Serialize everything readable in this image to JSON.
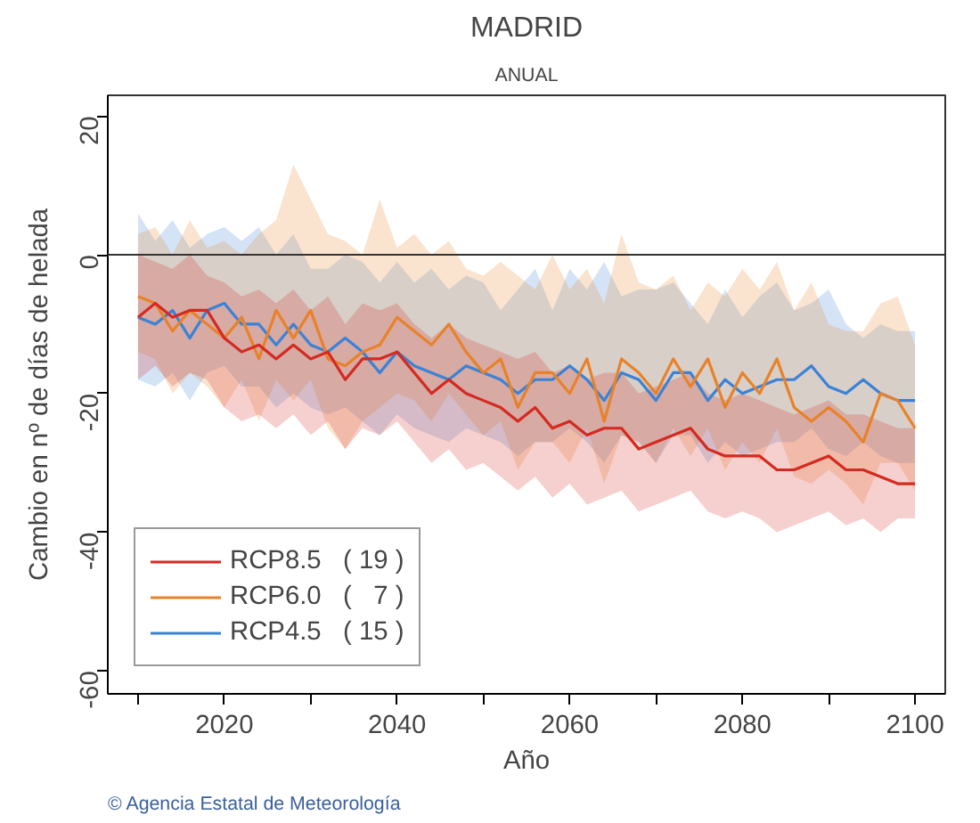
{
  "chart_data": {
    "type": "line",
    "title": "MADRID",
    "subtitle": "ANUAL",
    "xlabel": "Año",
    "ylabel": "Cambio en nº de días de helada",
    "annotations": [
      "© Agencia Estatal de Meteorología"
    ],
    "x": [
      2010,
      2012,
      2014,
      2016,
      2018,
      2020,
      2022,
      2024,
      2026,
      2028,
      2030,
      2032,
      2034,
      2036,
      2038,
      2040,
      2042,
      2044,
      2046,
      2048,
      2050,
      2052,
      2054,
      2056,
      2058,
      2060,
      2062,
      2064,
      2066,
      2068,
      2070,
      2072,
      2074,
      2076,
      2078,
      2080,
      2082,
      2084,
      2086,
      2088,
      2090,
      2092,
      2094,
      2096,
      2098,
      2100
    ],
    "series": [
      {
        "name": "RCP8.5   ( 19 )",
        "color": "#d42a20",
        "values": [
          -9,
          -7,
          -9,
          -8,
          -8,
          -12,
          -14,
          -13,
          -15,
          -13,
          -15,
          -14,
          -18,
          -15,
          -15,
          -14,
          -17,
          -20,
          -18,
          -20,
          -21,
          -22,
          -24,
          -22,
          -25,
          -24,
          -26,
          -25,
          -25,
          -28,
          -27,
          -26,
          -25,
          -28,
          -29,
          -29,
          -29,
          -31,
          -31,
          -30,
          -29,
          -31,
          -31,
          -32,
          -33,
          -33
        ],
        "upper": [
          0,
          -1,
          -2,
          0,
          -3,
          -4,
          -6,
          -5,
          -7,
          -5,
          -8,
          -6,
          -10,
          -7,
          -8,
          -7,
          -10,
          -12,
          -10,
          -12,
          -13,
          -14,
          -15,
          -14,
          -17,
          -16,
          -18,
          -17,
          -17,
          -20,
          -19,
          -18,
          -17,
          -20,
          -21,
          -20,
          -21,
          -22,
          -23,
          -22,
          -21,
          -23,
          -23,
          -24,
          -25,
          -25
        ],
        "lower": [
          -18,
          -16,
          -19,
          -17,
          -18,
          -22,
          -24,
          -23,
          -25,
          -23,
          -26,
          -24,
          -28,
          -25,
          -26,
          -24,
          -27,
          -30,
          -28,
          -31,
          -30,
          -32,
          -34,
          -32,
          -35,
          -33,
          -36,
          -35,
          -34,
          -37,
          -36,
          -35,
          -34,
          -37,
          -38,
          -37,
          -38,
          -40,
          -39,
          -38,
          -37,
          -39,
          -38,
          -40,
          -38,
          -38
        ]
      },
      {
        "name": "RCP6.0   (   7 )",
        "color": "#e8822a",
        "values": [
          -6,
          -7,
          -11,
          -8,
          -10,
          -12,
          -9,
          -15,
          -8,
          -12,
          -8,
          -15,
          -16,
          -14,
          -13,
          -9,
          -11,
          -13,
          -10,
          -14,
          -17,
          -15,
          -22,
          -17,
          -17,
          -20,
          -15,
          -24,
          -15,
          -17,
          -20,
          -15,
          -19,
          -15,
          -22,
          -17,
          -20,
          -15,
          -22,
          -24,
          -22,
          -24,
          -27,
          -20,
          -21,
          -25
        ],
        "upper": [
          3,
          4,
          0,
          5,
          1,
          2,
          0,
          3,
          5,
          13,
          8,
          3,
          2,
          0,
          8,
          1,
          3,
          0,
          2,
          -2,
          -3,
          -1,
          -3,
          -5,
          0,
          -5,
          -2,
          -7,
          3,
          -4,
          -5,
          -3,
          -8,
          -4,
          -6,
          -2,
          -5,
          -1,
          -8,
          -4,
          -10,
          -11,
          -11,
          -7,
          -6,
          -13
        ],
        "lower": [
          -14,
          -15,
          -20,
          -17,
          -19,
          -22,
          -18,
          -24,
          -18,
          -21,
          -18,
          -25,
          -28,
          -24,
          -22,
          -20,
          -21,
          -24,
          -20,
          -23,
          -26,
          -24,
          -31,
          -27,
          -27,
          -30,
          -25,
          -33,
          -26,
          -27,
          -30,
          -25,
          -29,
          -25,
          -31,
          -27,
          -30,
          -25,
          -32,
          -33,
          -31,
          -33,
          -36,
          -30,
          -30,
          -34
        ]
      },
      {
        "name": "RCP4.5   ( 15 )",
        "color": "#3b82d6",
        "values": [
          -9,
          -10,
          -8,
          -12,
          -8,
          -7,
          -10,
          -10,
          -13,
          -10,
          -13,
          -14,
          -12,
          -14,
          -17,
          -14,
          -16,
          -17,
          -18,
          -16,
          -17,
          -18,
          -20,
          -18,
          -18,
          -16,
          -18,
          -21,
          -17,
          -18,
          -21,
          -17,
          -17,
          -21,
          -18,
          -20,
          -19,
          -18,
          -18,
          -16,
          -19,
          -20,
          -18,
          -20,
          -21,
          -21
        ],
        "upper": [
          6,
          2,
          5,
          1,
          3,
          4,
          2,
          4,
          0,
          3,
          -2,
          -2,
          0,
          -1,
          -4,
          -1,
          -4,
          -2,
          -5,
          -3,
          -4,
          -8,
          -5,
          -2,
          -8,
          -2,
          -5,
          -1,
          -6,
          -5,
          -5,
          -4,
          -7,
          -10,
          -5,
          -9,
          -6,
          -4,
          -8,
          -7,
          -5,
          -10,
          -12,
          -10,
          -11,
          -11
        ],
        "lower": [
          -18,
          -19,
          -17,
          -21,
          -17,
          -16,
          -19,
          -19,
          -22,
          -20,
          -22,
          -23,
          -22,
          -24,
          -26,
          -23,
          -25,
          -26,
          -27,
          -25,
          -26,
          -27,
          -29,
          -27,
          -27,
          -25,
          -27,
          -30,
          -26,
          -27,
          -30,
          -26,
          -26,
          -30,
          -27,
          -29,
          -28,
          -27,
          -27,
          -25,
          -28,
          -29,
          -27,
          -29,
          -30,
          -30
        ]
      }
    ],
    "xlim": [
      2006.5,
      2103.5
    ],
    "ylim": [
      -63.3,
      23
    ],
    "xticks": [
      {
        "value": 2010,
        "label": null
      },
      2020,
      {
        "value": 2030,
        "label": null
      },
      2040,
      {
        "value": 2050,
        "label": null
      },
      2060,
      {
        "value": 2070,
        "label": null
      },
      2080,
      {
        "value": 2090,
        "label": null
      },
      2100
    ],
    "yticks": [
      -60,
      -40,
      -20,
      0,
      20
    ],
    "ref_lines": [
      {
        "axis": "y",
        "value": 0,
        "color": "#333333"
      }
    ],
    "grid": false,
    "legend": "bottom left",
    "line_style": "solid",
    "marker": "none"
  }
}
